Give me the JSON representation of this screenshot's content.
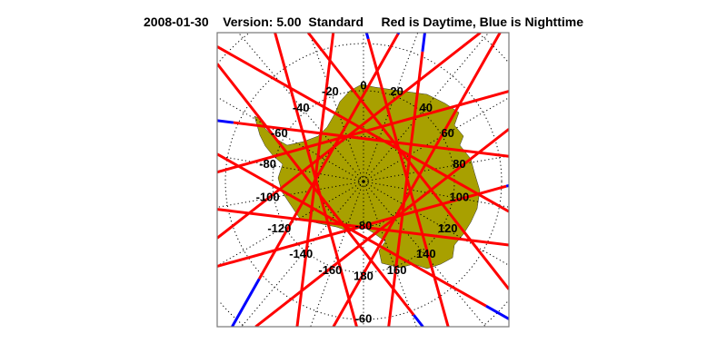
{
  "title": {
    "date": "2008-01-30",
    "version": "Version: 5.00",
    "mode": "Standard",
    "legend": "Red is Daytime, Blue is Nighttime"
  },
  "map": {
    "projection": "south polar stereographic",
    "colors": {
      "land": "#a8a000",
      "day": "#ff0000",
      "night": "#0000ff",
      "grid": "#000000",
      "frame": "#777777"
    },
    "longitude_labels": [
      {
        "lon": 0,
        "text": "0"
      },
      {
        "lon": 20,
        "text": "20"
      },
      {
        "lon": 40,
        "text": "40"
      },
      {
        "lon": 60,
        "text": "60"
      },
      {
        "lon": 80,
        "text": "80"
      },
      {
        "lon": 100,
        "text": "100"
      },
      {
        "lon": 120,
        "text": "120"
      },
      {
        "lon": 140,
        "text": "140"
      },
      {
        "lon": 160,
        "text": "160"
      },
      {
        "lon": 180,
        "text": "180"
      },
      {
        "lon": -160,
        "text": "-160"
      },
      {
        "lon": -140,
        "text": "-140"
      },
      {
        "lon": -120,
        "text": "-120"
      },
      {
        "lon": -100,
        "text": "-100"
      },
      {
        "lon": -80,
        "text": "-80"
      },
      {
        "lon": -60,
        "text": "-60"
      },
      {
        "lon": -40,
        "text": "-40"
      },
      {
        "lon": -20,
        "text": "-20"
      }
    ],
    "latitude_labels": [
      {
        "lat": -80,
        "text": "-80"
      },
      {
        "lat": -60,
        "text": "-60"
      }
    ]
  }
}
